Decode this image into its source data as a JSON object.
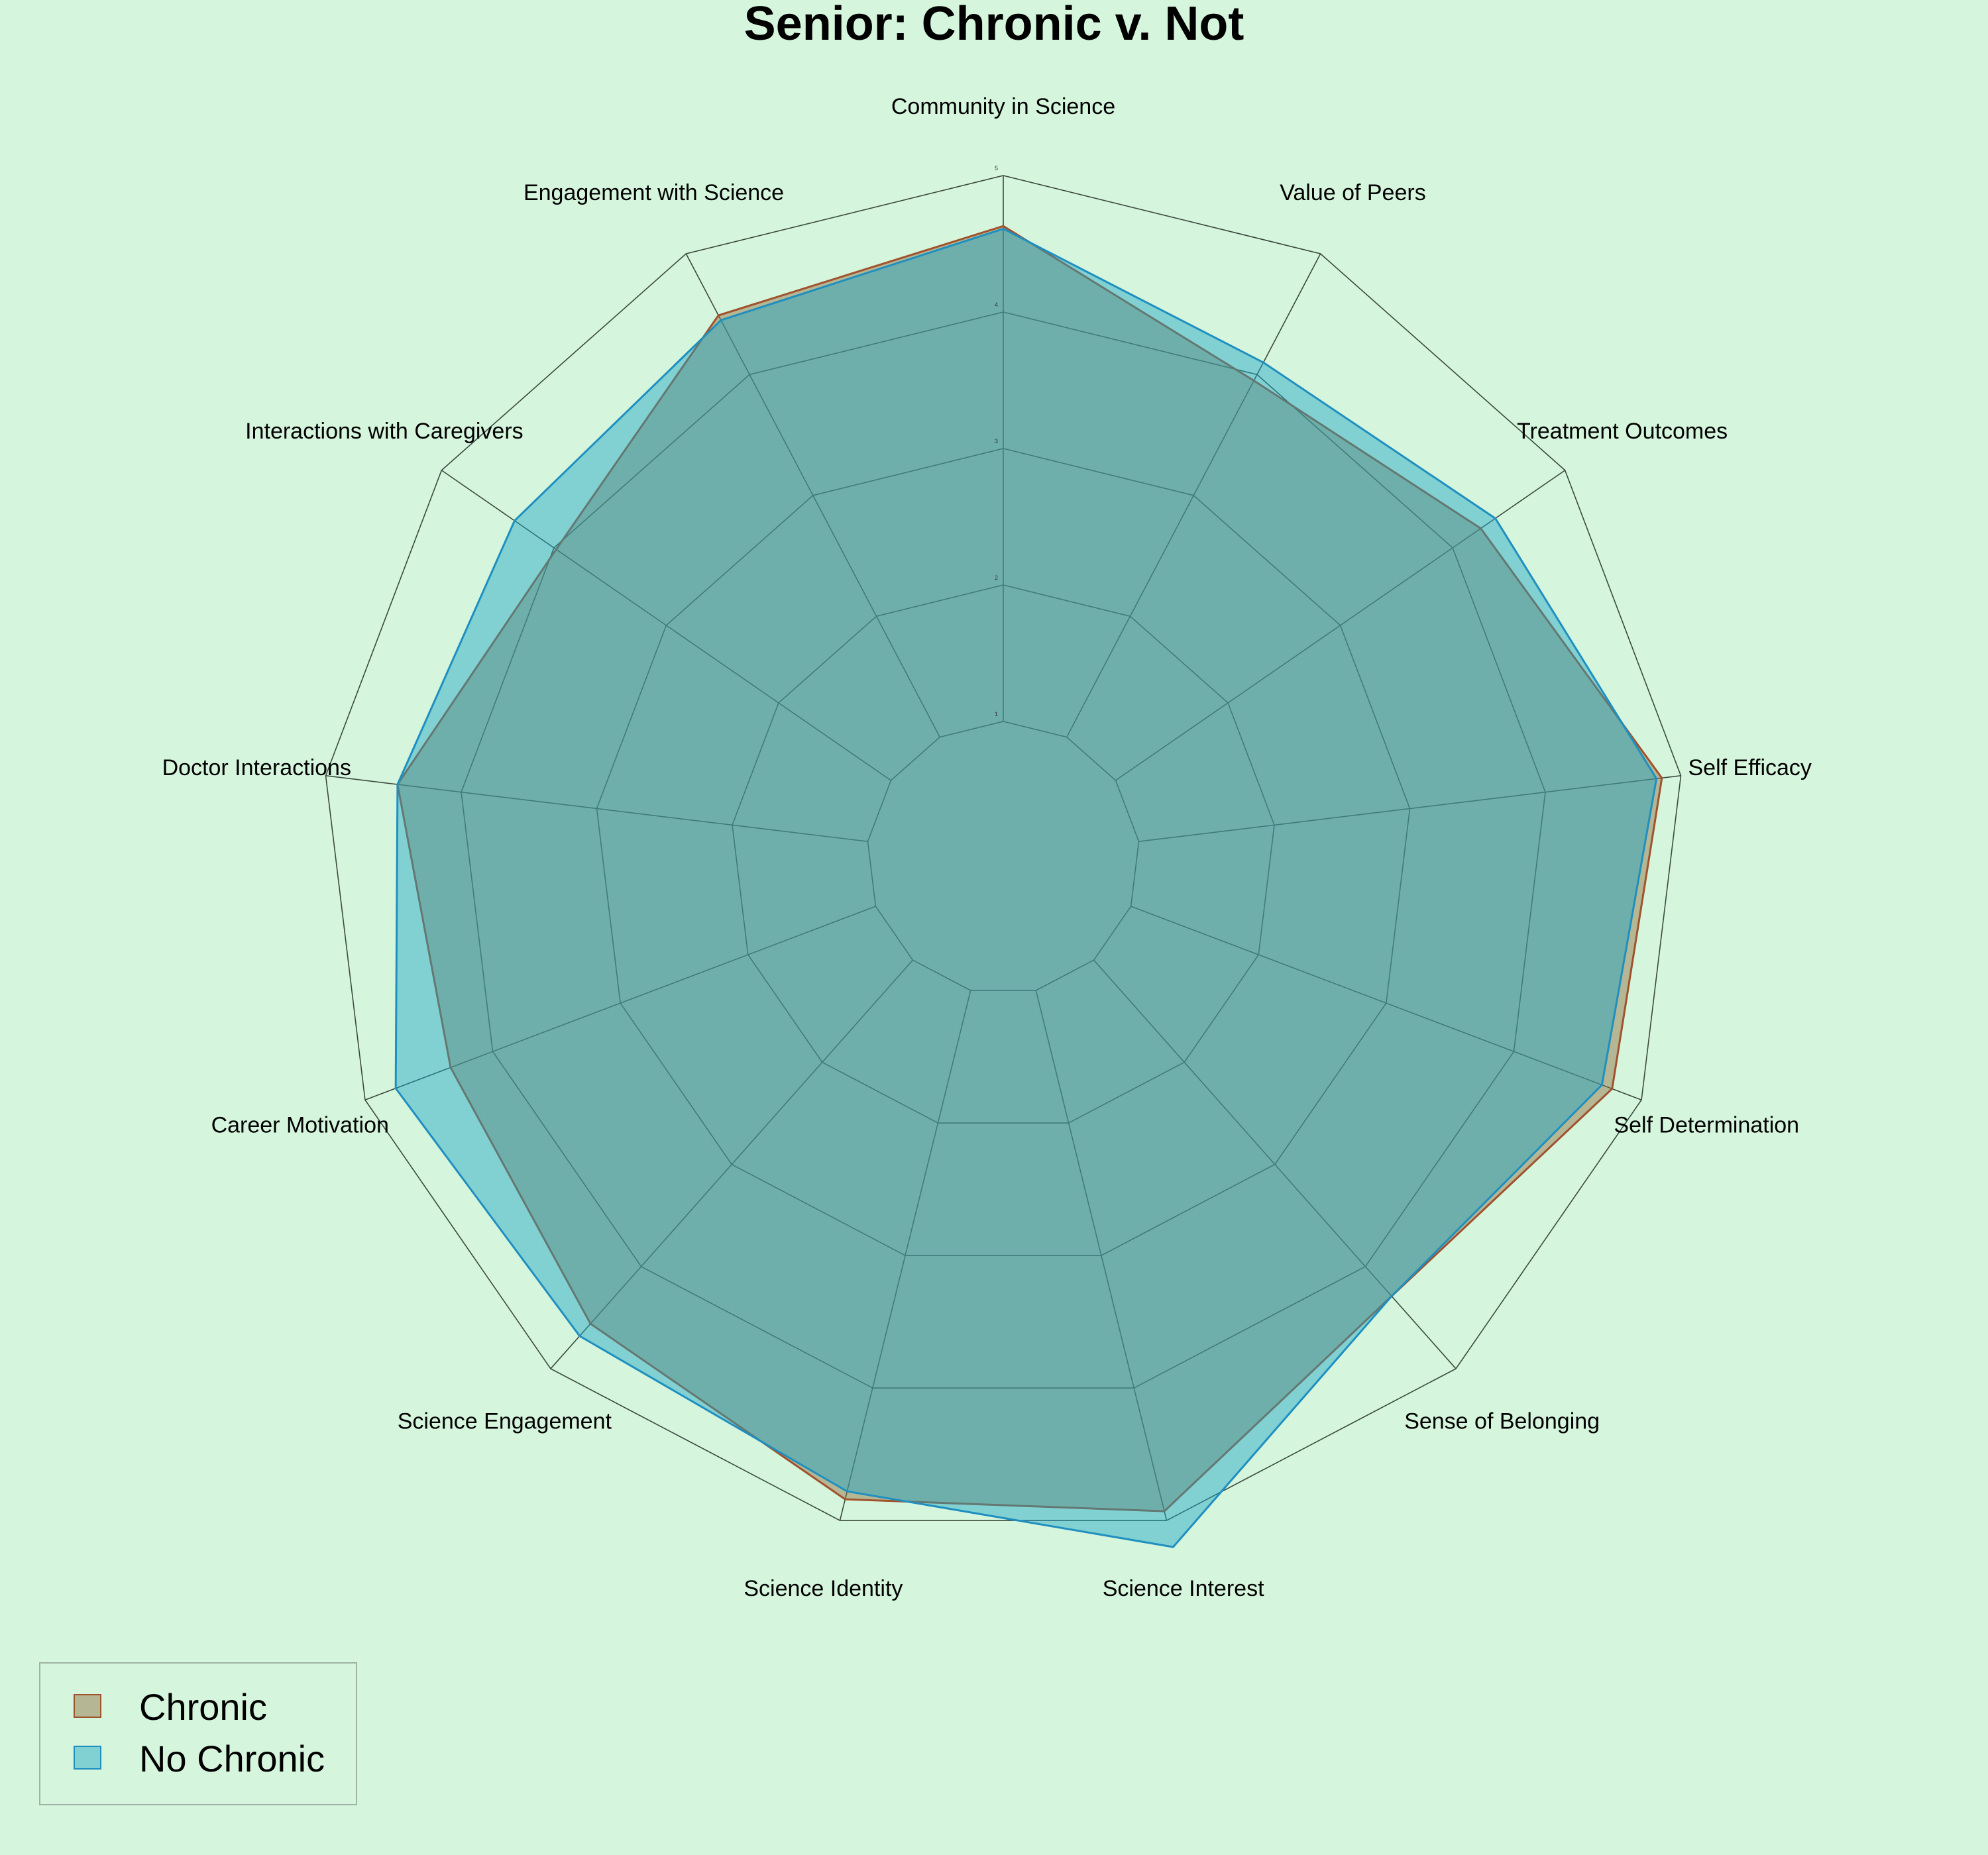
{
  "chart_data": {
    "type": "radar",
    "title": "Senior: Chronic v. Not",
    "axes": [
      "Community in Science",
      "Value of Peers",
      "Treatment Outcomes",
      "Self Efficacy",
      "Self Determination",
      "Sense of Belonging",
      "Science Interest",
      "Science Identity",
      "Science Engagement",
      "Career Motivation",
      "Doctor Interactions",
      "Interactions with Caregivers",
      "Engagement with Science"
    ],
    "rlim": [
      1,
      5
    ],
    "ticks": [
      "1",
      "2",
      "3",
      "4",
      "5"
    ],
    "tick_values": [
      1,
      2,
      3,
      4,
      5
    ],
    "series": [
      {
        "name": "Chronic",
        "values": [
          4.63,
          3.95,
          4.25,
          4.86,
          4.77,
          4.29,
          4.93,
          4.84,
          4.56,
          4.33,
          4.47,
          3.98,
          4.49
        ],
        "fill": "#8b6a3c",
        "stroke": "#a0522d"
      },
      {
        "name": "No Chronic",
        "values": [
          4.61,
          4.1,
          4.38,
          4.82,
          4.69,
          4.29,
          5.2,
          4.78,
          4.68,
          4.76,
          4.47,
          4.35,
          4.45
        ],
        "fill": "#1aa6c8",
        "stroke": "#1f8fbf"
      }
    ],
    "legend_position": "bottom-left"
  }
}
